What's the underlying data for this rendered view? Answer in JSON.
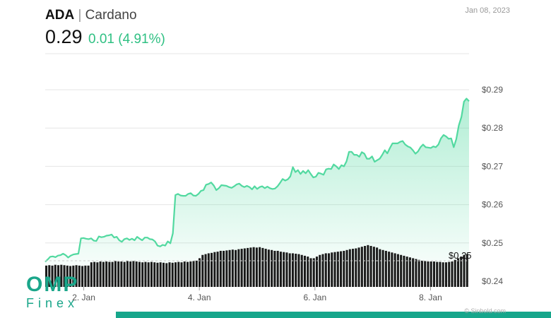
{
  "header": {
    "symbol": "ADA",
    "separator": "|",
    "name": "Cardano",
    "price": "0.29",
    "change": "0.01 (4.91%)",
    "date": "Jan 08, 2023"
  },
  "logo": {
    "main": "OMP",
    "sub": "Finex"
  },
  "credit": "© Sinbold.com",
  "colors": {
    "accent": "#2fc083",
    "line": "#52d9a0",
    "volume": "#1a1a1a",
    "brand": "#1aa68a"
  },
  "chart_data": {
    "type": "area",
    "title": "",
    "xlabel": "",
    "ylabel": "",
    "ylim": [
      0.24,
      0.29
    ],
    "xlim": [
      "Jan 1, 2023 08:00",
      "Jan 8, 2023 16:00"
    ],
    "y_ticks": [
      "$0.29",
      "$0.28",
      "$0.27",
      "$0.26",
      "$0.25",
      "$0.24"
    ],
    "y_tick_values": [
      0.29,
      0.28,
      0.27,
      0.26,
      0.25,
      0.24
    ],
    "x_ticks": [
      "2. Jan",
      "4. Jan",
      "6. Jan",
      "8. Jan"
    ],
    "x_tick_days": [
      2,
      4,
      6,
      8
    ],
    "volume_label": "$0.25",
    "grid": true,
    "legend": "none",
    "series": [
      {
        "type": "line",
        "x_start": "Jan 1, 2023 08:00",
        "x_end": "Jan 8, 2023 16:00",
        "values": [
          0.2451,
          0.2457,
          0.2464,
          0.2465,
          0.2463,
          0.2467,
          0.2468,
          0.2472,
          0.2468,
          0.2462,
          0.2467,
          0.247,
          0.2471,
          0.2472,
          0.2512,
          0.2513,
          0.2511,
          0.251,
          0.2512,
          0.2506,
          0.2505,
          0.2517,
          0.2515,
          0.2516,
          0.2519,
          0.252,
          0.2522,
          0.2514,
          0.2516,
          0.2507,
          0.2503,
          0.251,
          0.2512,
          0.2508,
          0.2511,
          0.2507,
          0.2516,
          0.2511,
          0.2507,
          0.2514,
          0.2514,
          0.251,
          0.2509,
          0.2504,
          0.2493,
          0.2491,
          0.2495,
          0.2493,
          0.2504,
          0.2499,
          0.2525,
          0.2625,
          0.2628,
          0.2624,
          0.2623,
          0.2623,
          0.2628,
          0.263,
          0.2624,
          0.2623,
          0.2628,
          0.2636,
          0.2638,
          0.2652,
          0.2654,
          0.2658,
          0.265,
          0.2638,
          0.2643,
          0.2651,
          0.265,
          0.2649,
          0.2646,
          0.2644,
          0.2648,
          0.2653,
          0.2655,
          0.2649,
          0.2646,
          0.2649,
          0.2646,
          0.264,
          0.2648,
          0.2641,
          0.2646,
          0.2648,
          0.2643,
          0.2647,
          0.2643,
          0.2641,
          0.2642,
          0.2648,
          0.2657,
          0.2667,
          0.2663,
          0.2666,
          0.2674,
          0.2698,
          0.2685,
          0.269,
          0.268,
          0.2688,
          0.2682,
          0.269,
          0.268,
          0.2671,
          0.2673,
          0.2683,
          0.2681,
          0.2678,
          0.2692,
          0.2694,
          0.2693,
          0.2705,
          0.27,
          0.2693,
          0.2703,
          0.27,
          0.2713,
          0.2738,
          0.2738,
          0.273,
          0.273,
          0.2725,
          0.2737,
          0.2733,
          0.272,
          0.272,
          0.2726,
          0.2712,
          0.2716,
          0.272,
          0.273,
          0.2742,
          0.2734,
          0.2748,
          0.276,
          0.276,
          0.276,
          0.2764,
          0.2766,
          0.2757,
          0.2752,
          0.2749,
          0.2742,
          0.2733,
          0.2739,
          0.275,
          0.2757,
          0.275,
          0.2749,
          0.2748,
          0.2752,
          0.275,
          0.2757,
          0.2773,
          0.2782,
          0.2778,
          0.2772,
          0.2773,
          0.275,
          0.2771,
          0.2807,
          0.2829,
          0.2869,
          0.2877,
          0.287
        ]
      },
      {
        "type": "volume",
        "name": "",
        "values": [
          0.52,
          0.53,
          0.52,
          0.54,
          0.53,
          0.54,
          0.53,
          0.52,
          0.51,
          0.52,
          0.53,
          0.52,
          0.51,
          0.52,
          0.52,
          0.6,
          0.61,
          0.6,
          0.62,
          0.61,
          0.62,
          0.61,
          0.61,
          0.63,
          0.62,
          0.62,
          0.61,
          0.63,
          0.62,
          0.63,
          0.62,
          0.61,
          0.6,
          0.61,
          0.6,
          0.61,
          0.6,
          0.59,
          0.6,
          0.59,
          0.58,
          0.6,
          0.59,
          0.6,
          0.61,
          0.6,
          0.62,
          0.61,
          0.62,
          0.63,
          0.64,
          0.7,
          0.78,
          0.8,
          0.82,
          0.83,
          0.85,
          0.86,
          0.88,
          0.88,
          0.89,
          0.9,
          0.91,
          0.9,
          0.92,
          0.93,
          0.94,
          0.95,
          0.96,
          0.97,
          0.96,
          0.97,
          0.95,
          0.93,
          0.91,
          0.9,
          0.88,
          0.88,
          0.86,
          0.85,
          0.84,
          0.82,
          0.82,
          0.81,
          0.8,
          0.78,
          0.76,
          0.74,
          0.7,
          0.7,
          0.74,
          0.78,
          0.8,
          0.82,
          0.82,
          0.84,
          0.85,
          0.86,
          0.87,
          0.88,
          0.9,
          0.92,
          0.93,
          0.94,
          0.96,
          0.98,
          1.0,
          1.02,
          1.0,
          0.98,
          0.96,
          0.92,
          0.9,
          0.88,
          0.86,
          0.84,
          0.82,
          0.8,
          0.78,
          0.76,
          0.74,
          0.72,
          0.7,
          0.68,
          0.66,
          0.64,
          0.63,
          0.62,
          0.62,
          0.62,
          0.61,
          0.61,
          0.6,
          0.6,
          0.61,
          0.62,
          0.66,
          0.7,
          0.74,
          0.78,
          0.8
        ]
      }
    ]
  }
}
